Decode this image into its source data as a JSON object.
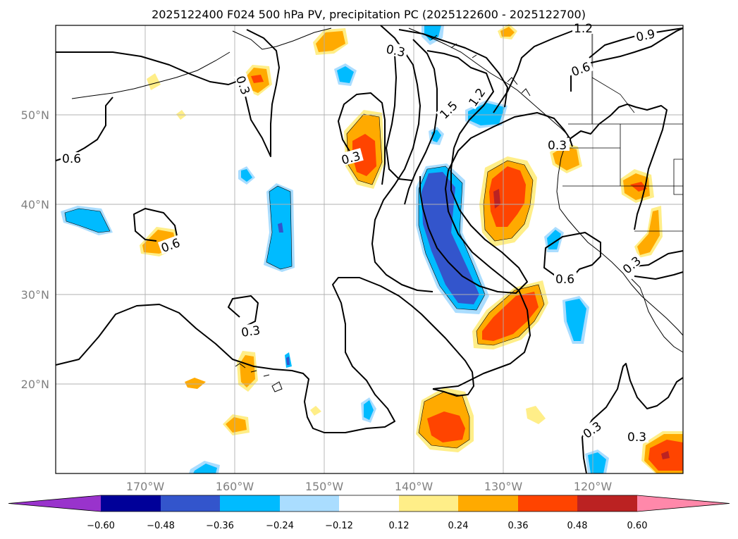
{
  "title": "2025122400 F024 500 hPa PV, precipitation PC (2025122600 - 2025122700)",
  "axes": {
    "lat_labels": [
      "50°N",
      "40°N",
      "30°N",
      "20°N"
    ],
    "lon_labels": [
      "170°W",
      "160°W",
      "150°W",
      "140°W",
      "130°W",
      "120°W"
    ]
  },
  "contour_labels": [
    {
      "id": "c1",
      "text": "1.2"
    },
    {
      "id": "c2",
      "text": "0.9"
    },
    {
      "id": "c3",
      "text": "0.3"
    },
    {
      "id": "c4",
      "text": "0.6"
    },
    {
      "id": "c5",
      "text": "0.3"
    },
    {
      "id": "c6",
      "text": "1.5"
    },
    {
      "id": "c7",
      "text": "1.2"
    },
    {
      "id": "c8",
      "text": "0.3"
    },
    {
      "id": "c9",
      "text": "0.6"
    },
    {
      "id": "c10",
      "text": "0.3"
    },
    {
      "id": "c11",
      "text": "0.6"
    },
    {
      "id": "c12",
      "text": "0.6"
    },
    {
      "id": "c13",
      "text": "0.3"
    },
    {
      "id": "c14",
      "text": "0.3"
    },
    {
      "id": "c15",
      "text": "0.3"
    },
    {
      "id": "c16",
      "text": "0.3"
    }
  ],
  "colorbar": {
    "ticks": [
      "−0.60",
      "−0.48",
      "−0.36",
      "−0.24",
      "−0.12",
      "0.12",
      "0.24",
      "0.36",
      "0.48",
      "0.60"
    ],
    "colors": [
      "#9933cc",
      "#000099",
      "#3355cc",
      "#00bbff",
      "#aaddff",
      "#ffffff",
      "#ffee88",
      "#ffaa00",
      "#ff4400",
      "#bb2222",
      "#ff88aa"
    ]
  }
}
